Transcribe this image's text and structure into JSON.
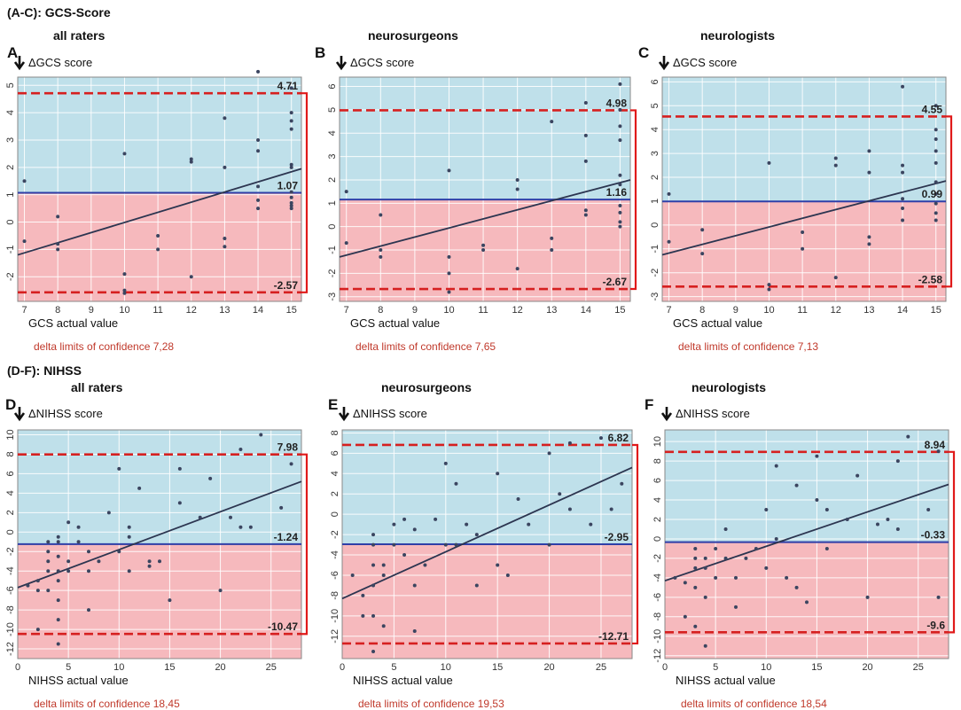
{
  "sections": [
    {
      "title": "(A-C): GCS-Score"
    },
    {
      "title": "(D-F): NIHSS"
    }
  ],
  "colors": {
    "upper_region": "#bfe0ea",
    "lower_region": "#f6b9bd",
    "mean_line": "#2f3fa8",
    "limit_line": "#d62020",
    "regression": "#2c3550",
    "points": "#3b4560",
    "bracket": "#e01a1a",
    "grid": "#ffffff"
  },
  "chart_data": [
    {
      "type": "scatter",
      "panel": "A",
      "title": "all raters",
      "ylabel": "ΔGCS score",
      "xlabel": "GCS actual value",
      "xlim": [
        6.8,
        15.3
      ],
      "ylim": [
        -2.9,
        5.3
      ],
      "xticks": [
        7,
        8,
        9,
        10,
        11,
        12,
        13,
        14,
        15
      ],
      "yticks": [
        -2,
        -1,
        0,
        1,
        2,
        3,
        4,
        5
      ],
      "mean": 1.07,
      "upper_limit": 4.71,
      "lower_limit": -2.57,
      "mean_label": "1.07",
      "upper_label": "4.71",
      "lower_label": "-2.57",
      "regression": [
        [
          6.8,
          -1.2
        ],
        [
          15.3,
          1.95
        ]
      ],
      "loa_text": "delta limits of confidence 7,28",
      "points": [
        [
          7,
          1.5
        ],
        [
          7,
          -0.7
        ],
        [
          8,
          0.2
        ],
        [
          8,
          -0.8
        ],
        [
          8,
          -1
        ],
        [
          10,
          2.5
        ],
        [
          10,
          -1.9
        ],
        [
          10,
          -2.5
        ],
        [
          10,
          -2.6
        ],
        [
          11,
          -0.5
        ],
        [
          11,
          -1
        ],
        [
          12,
          2.2
        ],
        [
          12,
          2.3
        ],
        [
          12,
          -2
        ],
        [
          13,
          3.8
        ],
        [
          13,
          2
        ],
        [
          13,
          -0.6
        ],
        [
          13,
          -0.9
        ],
        [
          14,
          5.5
        ],
        [
          14,
          3
        ],
        [
          14,
          2.6
        ],
        [
          14,
          1.3
        ],
        [
          14,
          0.8
        ],
        [
          14,
          0.5
        ],
        [
          15,
          4.9
        ],
        [
          15,
          4
        ],
        [
          15,
          3.7
        ],
        [
          15,
          3.4
        ],
        [
          15,
          2.1
        ],
        [
          15,
          2
        ],
        [
          15,
          1.1
        ],
        [
          15,
          0.9
        ],
        [
          15,
          0.7
        ],
        [
          15,
          0.6
        ],
        [
          15,
          0.5
        ]
      ]
    },
    {
      "type": "scatter",
      "panel": "B",
      "title": "neurosurgeons",
      "ylabel": "ΔGCS score",
      "xlabel": "GCS actual value",
      "xlim": [
        6.8,
        15.3
      ],
      "ylim": [
        -3.2,
        6.4
      ],
      "xticks": [
        7,
        8,
        9,
        10,
        11,
        12,
        13,
        14,
        15
      ],
      "yticks": [
        -3,
        -2,
        -1,
        0,
        1,
        2,
        3,
        4,
        5,
        6
      ],
      "mean": 1.16,
      "upper_limit": 4.98,
      "lower_limit": -2.67,
      "mean_label": "1.16",
      "upper_label": "4.98",
      "lower_label": "-2.67",
      "regression": [
        [
          6.8,
          -1.3
        ],
        [
          15.3,
          2.0
        ]
      ],
      "loa_text": "delta limits of confidence 7,65",
      "points": [
        [
          7,
          1.5
        ],
        [
          7,
          -0.7
        ],
        [
          8,
          0.5
        ],
        [
          8,
          -1
        ],
        [
          8,
          -1.3
        ],
        [
          10,
          2.4
        ],
        [
          10,
          -1.3
        ],
        [
          10,
          -2
        ],
        [
          10,
          -2.8
        ],
        [
          11,
          -0.8
        ],
        [
          11,
          -1
        ],
        [
          12,
          2
        ],
        [
          12,
          1.6
        ],
        [
          12,
          -1.8
        ],
        [
          13,
          4.5
        ],
        [
          13,
          -0.5
        ],
        [
          13,
          -1
        ],
        [
          14,
          5.3
        ],
        [
          14,
          3.9
        ],
        [
          14,
          2.8
        ],
        [
          14,
          0.7
        ],
        [
          14,
          0.5
        ],
        [
          15,
          6.1
        ],
        [
          15,
          5
        ],
        [
          15,
          4.3
        ],
        [
          15,
          3.7
        ],
        [
          15,
          2.2
        ],
        [
          15,
          1.8
        ],
        [
          15,
          0.9
        ],
        [
          15,
          0.6
        ],
        [
          15,
          0.2
        ],
        [
          15,
          0
        ]
      ]
    },
    {
      "type": "scatter",
      "panel": "C",
      "title": "neurologists",
      "ylabel": "ΔGCS score",
      "xlabel": "GCS actual value",
      "xlim": [
        6.8,
        15.3
      ],
      "ylim": [
        -3.2,
        6.2
      ],
      "xticks": [
        7,
        8,
        9,
        10,
        11,
        12,
        13,
        14,
        15
      ],
      "yticks": [
        -3,
        -2,
        -1,
        0,
        1,
        2,
        3,
        4,
        5,
        6
      ],
      "mean": 0.99,
      "upper_limit": 4.55,
      "lower_limit": -2.58,
      "mean_label": "0.99",
      "upper_label": "4.55",
      "lower_label": "-2.58",
      "regression": [
        [
          6.8,
          -1.25
        ],
        [
          15.3,
          1.85
        ]
      ],
      "loa_text": "delta limits of confidence 7,13",
      "points": [
        [
          7,
          1.3
        ],
        [
          7,
          -0.7
        ],
        [
          8,
          -0.2
        ],
        [
          8,
          -1.2
        ],
        [
          10,
          2.6
        ],
        [
          10,
          -2.5
        ],
        [
          10,
          -2.7
        ],
        [
          11,
          -0.3
        ],
        [
          11,
          -1
        ],
        [
          12,
          2.8
        ],
        [
          12,
          2.5
        ],
        [
          12,
          -2.2
        ],
        [
          13,
          3.1
        ],
        [
          13,
          2.2
        ],
        [
          13,
          -0.5
        ],
        [
          13,
          -0.8
        ],
        [
          14,
          5.8
        ],
        [
          14,
          2.5
        ],
        [
          14,
          2.2
        ],
        [
          14,
          1.1
        ],
        [
          14,
          0.7
        ],
        [
          14,
          0.2
        ],
        [
          15,
          5
        ],
        [
          15,
          4
        ],
        [
          15,
          3.6
        ],
        [
          15,
          3.1
        ],
        [
          15,
          2.6
        ],
        [
          15,
          1.8
        ],
        [
          15,
          1.3
        ],
        [
          15,
          0.9
        ],
        [
          15,
          0.5
        ],
        [
          15,
          0.2
        ]
      ]
    },
    {
      "type": "scatter",
      "panel": "D",
      "title": "all raters",
      "ylabel": "ΔNIHSS score",
      "xlabel": "NIHSS actual value",
      "xlim": [
        0,
        28
      ],
      "ylim": [
        -13,
        10.5
      ],
      "xticks": [
        0,
        5,
        10,
        15,
        20,
        25
      ],
      "yticks": [
        -12,
        -10,
        -8,
        -6,
        -4,
        -2,
        0,
        2,
        4,
        6,
        8,
        10
      ],
      "mean": -1.24,
      "upper_limit": 7.98,
      "lower_limit": -10.47,
      "mean_label": "-1.24",
      "upper_label": "7.98",
      "lower_label": "-10.47",
      "regression": [
        [
          0,
          -5.7
        ],
        [
          28,
          5.2
        ]
      ],
      "loa_text": "delta limits of confidence 18,45",
      "points": [
        [
          1,
          -5.5
        ],
        [
          2,
          -5
        ],
        [
          2,
          -6
        ],
        [
          2,
          -10
        ],
        [
          3,
          -1
        ],
        [
          3,
          -2
        ],
        [
          3,
          -3
        ],
        [
          3,
          -4
        ],
        [
          3,
          -6
        ],
        [
          4,
          -0.5
        ],
        [
          4,
          -1
        ],
        [
          4,
          -2.5
        ],
        [
          4,
          -4
        ],
        [
          4,
          -5
        ],
        [
          4,
          -7
        ],
        [
          4,
          -9
        ],
        [
          4,
          -11.5
        ],
        [
          5,
          1
        ],
        [
          5,
          -3
        ],
        [
          5,
          -4
        ],
        [
          6,
          0.5
        ],
        [
          6,
          -1
        ],
        [
          7,
          -2
        ],
        [
          7,
          -4
        ],
        [
          7,
          -8
        ],
        [
          8,
          -3
        ],
        [
          9,
          2
        ],
        [
          10,
          -2
        ],
        [
          10,
          6.5
        ],
        [
          11,
          -0.5
        ],
        [
          11,
          0.5
        ],
        [
          11,
          -4
        ],
        [
          12,
          4.5
        ],
        [
          13,
          -3
        ],
        [
          13,
          -3.5
        ],
        [
          14,
          -3
        ],
        [
          15,
          -7
        ],
        [
          16,
          6.5
        ],
        [
          16,
          3
        ],
        [
          18,
          1.5
        ],
        [
          19,
          5.5
        ],
        [
          20,
          -6
        ],
        [
          21,
          1.5
        ],
        [
          22,
          0.5
        ],
        [
          22,
          8.5
        ],
        [
          23,
          0.5
        ],
        [
          24,
          10
        ],
        [
          26,
          2.5
        ],
        [
          27,
          7
        ]
      ]
    },
    {
      "type": "scatter",
      "panel": "E",
      "title": "neurosurgeons",
      "ylabel": "ΔNIHSS score",
      "xlabel": "NIHSS actual value",
      "xlim": [
        0,
        28
      ],
      "ylim": [
        -14.2,
        8.3
      ],
      "xticks": [
        0,
        5,
        10,
        15,
        20,
        25
      ],
      "yticks": [
        -12,
        -10,
        -8,
        -6,
        -4,
        -2,
        0,
        2,
        4,
        6,
        8
      ],
      "mean": -2.95,
      "upper_limit": 6.82,
      "lower_limit": -12.71,
      "mean_label": "-2.95",
      "upper_label": "6.82",
      "lower_label": "-12.71",
      "regression": [
        [
          0,
          -8.3
        ],
        [
          28,
          4.6
        ]
      ],
      "loa_text": "delta limits of confidence 19,53",
      "points": [
        [
          1,
          -6
        ],
        [
          2,
          -8
        ],
        [
          2,
          -10
        ],
        [
          3,
          -2
        ],
        [
          3,
          -3
        ],
        [
          3,
          -5
        ],
        [
          3,
          -7
        ],
        [
          3,
          -10
        ],
        [
          3,
          -13.5
        ],
        [
          4,
          -5
        ],
        [
          4,
          -6
        ],
        [
          4,
          -11
        ],
        [
          5,
          -1
        ],
        [
          5,
          -3
        ],
        [
          6,
          -0.5
        ],
        [
          6,
          -4
        ],
        [
          7,
          -1.5
        ],
        [
          7,
          -7
        ],
        [
          7,
          -11.5
        ],
        [
          8,
          -5
        ],
        [
          9,
          -0.5
        ],
        [
          10,
          -3
        ],
        [
          10,
          5
        ],
        [
          11,
          -3
        ],
        [
          11,
          3
        ],
        [
          12,
          -1
        ],
        [
          13,
          -2
        ],
        [
          13,
          -7
        ],
        [
          15,
          4
        ],
        [
          15,
          -5
        ],
        [
          16,
          -6
        ],
        [
          17,
          1.5
        ],
        [
          18,
          -1
        ],
        [
          20,
          6
        ],
        [
          20,
          -3
        ],
        [
          21,
          2
        ],
        [
          22,
          0.5
        ],
        [
          22,
          7
        ],
        [
          24,
          -1
        ],
        [
          25,
          7.5
        ],
        [
          26,
          0.5
        ],
        [
          27,
          3
        ]
      ]
    },
    {
      "type": "scatter",
      "panel": "F",
      "title": "neurologists",
      "ylabel": "ΔNIHSS score",
      "xlabel": "NIHSS actual value",
      "xlim": [
        0,
        28
      ],
      "ylim": [
        -12.3,
        11.2
      ],
      "xticks": [
        0,
        5,
        10,
        15,
        20,
        25
      ],
      "yticks": [
        -12,
        -10,
        -8,
        -6,
        -4,
        -2,
        0,
        2,
        4,
        6,
        8,
        10
      ],
      "mean": -0.33,
      "upper_limit": 8.94,
      "lower_limit": -9.6,
      "mean_label": "-0.33",
      "upper_label": "8.94",
      "lower_label": "-9.6",
      "regression": [
        [
          0,
          -4.3
        ],
        [
          28,
          5.6
        ]
      ],
      "loa_text": "delta limits of confidence 18,54",
      "points": [
        [
          1,
          -4
        ],
        [
          2,
          -4.5
        ],
        [
          2,
          -8
        ],
        [
          3,
          -1
        ],
        [
          3,
          -2
        ],
        [
          3,
          -3
        ],
        [
          3,
          -5
        ],
        [
          3,
          -9
        ],
        [
          4,
          -2
        ],
        [
          4,
          -3
        ],
        [
          4,
          -6
        ],
        [
          4,
          -11
        ],
        [
          5,
          -1
        ],
        [
          5,
          -4
        ],
        [
          6,
          1
        ],
        [
          6,
          -2
        ],
        [
          7,
          -4
        ],
        [
          7,
          -7
        ],
        [
          8,
          -2
        ],
        [
          9,
          -1
        ],
        [
          10,
          3
        ],
        [
          10,
          -3
        ],
        [
          11,
          0
        ],
        [
          11,
          7.5
        ],
        [
          12,
          -4
        ],
        [
          13,
          5.5
        ],
        [
          13,
          -5
        ],
        [
          14,
          -6.5
        ],
        [
          15,
          8.5
        ],
        [
          15,
          4
        ],
        [
          16,
          3
        ],
        [
          16,
          -1
        ],
        [
          18,
          2
        ],
        [
          19,
          6.5
        ],
        [
          20,
          -6
        ],
        [
          21,
          1.5
        ],
        [
          22,
          2
        ],
        [
          23,
          1
        ],
        [
          23,
          8
        ],
        [
          24,
          10.5
        ],
        [
          26,
          3
        ],
        [
          27,
          9
        ],
        [
          27,
          -6
        ]
      ]
    }
  ]
}
